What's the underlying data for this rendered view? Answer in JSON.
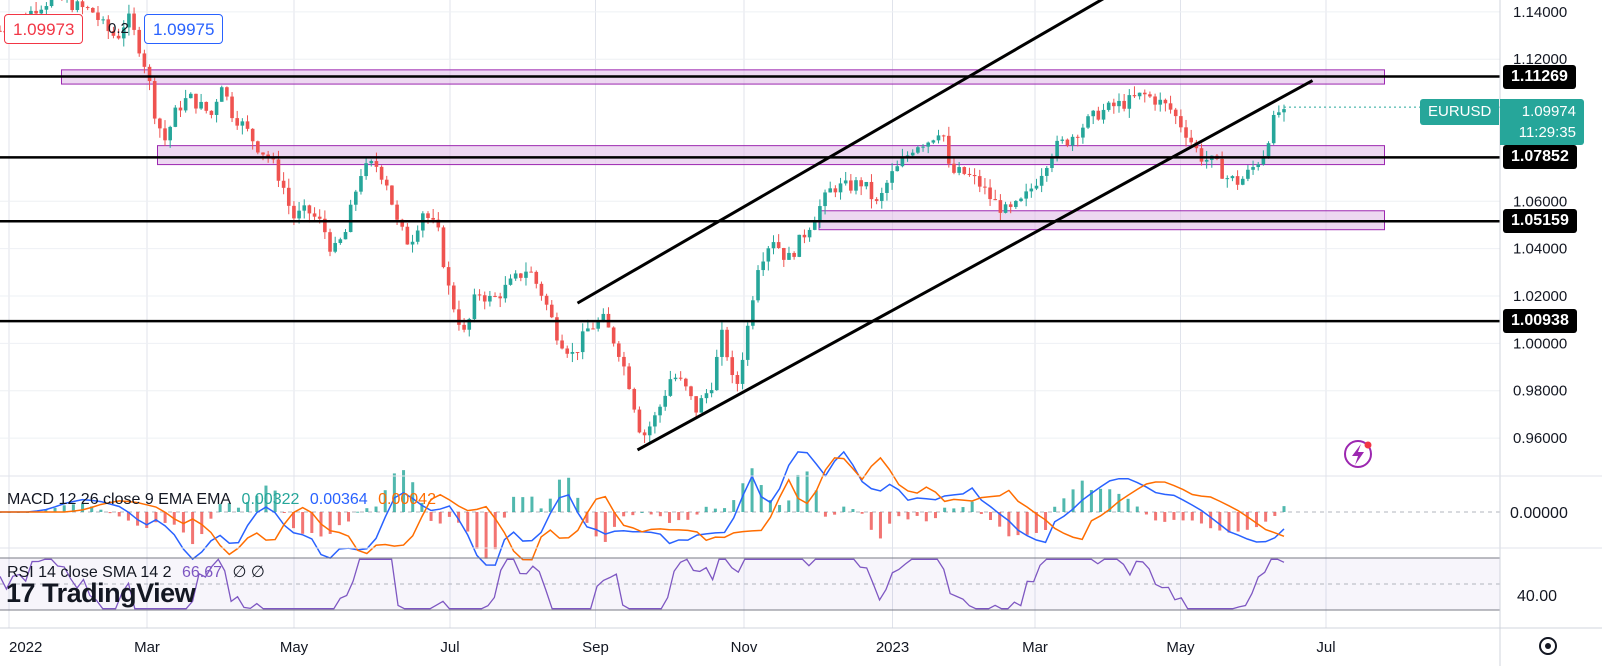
{
  "quote": {
    "bid": "1.09973",
    "spread": "0.2",
    "ask": "1.09975"
  },
  "symbol": "EURUSD",
  "last_price": "1.09974",
  "countdown": "11:29:35",
  "macd": {
    "label": "MACD 12 26 close 9 EMA EMA",
    "hist": "0.00322",
    "macd": "0.00364",
    "signal": "0.00042",
    "axis_label": "0.00000"
  },
  "rsi": {
    "label": "RSI 14 close SMA 14 2",
    "value": "66.67",
    "symbols": "∅ ∅",
    "axis_label": "40.00"
  },
  "brand": "TradingView",
  "colors": {
    "up": "#26a69a",
    "down": "#ef5350",
    "zone_fill": "#e1bee7",
    "zone_border": "#9c27b0",
    "macd_line": "#2962ff",
    "signal_line": "#ff6d00",
    "rsi_line": "#7e57c2"
  },
  "chart_data": {
    "type": "candlestick",
    "title": "EURUSD",
    "x_tick_labels": [
      "2022",
      "Mar",
      "May",
      "Jul",
      "Sep",
      "Nov",
      "2023",
      "Mar",
      "May",
      "Jul"
    ],
    "y_tick_labels": [
      "1.14000",
      "1.12000",
      "1.06000",
      "1.04000",
      "1.02000",
      "1.00000",
      "0.98000",
      "0.96000"
    ],
    "ylim": [
      0.944,
      1.145
    ],
    "horizontal_levels": [
      "1.11269",
      "1.07852",
      "1.05159",
      "1.00938"
    ],
    "zones": [
      [
        1.1095,
        1.1155
      ],
      [
        1.0755,
        1.0835
      ],
      [
        1.048,
        1.056
      ]
    ],
    "channel": {
      "upper": [
        [
          0.385,
          1.017
        ],
        [
          0.745,
          1.149
        ]
      ],
      "lower": [
        [
          0.425,
          0.955
        ],
        [
          0.875,
          1.111
        ]
      ]
    },
    "price_path": [
      [
        0,
        1.132
      ],
      [
        0.012,
        1.135
      ],
      [
        0.024,
        1.142
      ],
      [
        0.036,
        1.146
      ],
      [
        0.046,
        1.144
      ],
      [
        0.052,
        1.142
      ],
      [
        0.062,
        1.14
      ],
      [
        0.07,
        1.133
      ],
      [
        0.078,
        1.129
      ],
      [
        0.085,
        1.138
      ],
      [
        0.093,
        1.125
      ],
      [
        0.098,
        1.115
      ],
      [
        0.104,
        1.095
      ],
      [
        0.11,
        1.086
      ],
      [
        0.118,
        1.099
      ],
      [
        0.126,
        1.104
      ],
      [
        0.134,
        1.1
      ],
      [
        0.142,
        1.096
      ],
      [
        0.147,
        1.112
      ],
      [
        0.154,
        1.098
      ],
      [
        0.162,
        1.092
      ],
      [
        0.172,
        1.083
      ],
      [
        0.18,
        1.078
      ],
      [
        0.188,
        1.068
      ],
      [
        0.195,
        1.053
      ],
      [
        0.205,
        1.056
      ],
      [
        0.215,
        1.05
      ],
      [
        0.222,
        1.038
      ],
      [
        0.23,
        1.046
      ],
      [
        0.24,
        1.072
      ],
      [
        0.25,
        1.076
      ],
      [
        0.258,
        1.068
      ],
      [
        0.265,
        1.05
      ],
      [
        0.273,
        1.042
      ],
      [
        0.282,
        1.056
      ],
      [
        0.292,
        1.047
      ],
      [
        0.3,
        1.02
      ],
      [
        0.31,
        1.003
      ],
      [
        0.318,
        1.022
      ],
      [
        0.328,
        1.018
      ],
      [
        0.34,
        1.025
      ],
      [
        0.352,
        1.032
      ],
      [
        0.362,
        1.02
      ],
      [
        0.372,
        1.003
      ],
      [
        0.382,
        0.995
      ],
      [
        0.392,
        1.006
      ],
      [
        0.402,
        1.01
      ],
      [
        0.412,
        0.998
      ],
      [
        0.42,
        0.982
      ],
      [
        0.428,
        0.96
      ],
      [
        0.438,
        0.97
      ],
      [
        0.448,
        0.987
      ],
      [
        0.456,
        0.982
      ],
      [
        0.464,
        0.972
      ],
      [
        0.474,
        0.982
      ],
      [
        0.482,
        1.005
      ],
      [
        0.49,
        0.978
      ],
      [
        0.498,
        1.005
      ],
      [
        0.505,
        1.033
      ],
      [
        0.515,
        1.045
      ],
      [
        0.525,
        1.035
      ],
      [
        0.535,
        1.045
      ],
      [
        0.545,
        1.056
      ],
      [
        0.555,
        1.066
      ],
      [
        0.565,
        1.066
      ],
      [
        0.575,
        1.068
      ],
      [
        0.585,
        1.058
      ],
      [
        0.593,
        1.07
      ],
      [
        0.6,
        1.075
      ],
      [
        0.61,
        1.084
      ],
      [
        0.62,
        1.086
      ],
      [
        0.628,
        1.092
      ],
      [
        0.633,
        1.072
      ],
      [
        0.642,
        1.072
      ],
      [
        0.652,
        1.068
      ],
      [
        0.662,
        1.06
      ],
      [
        0.672,
        1.055
      ],
      [
        0.682,
        1.06
      ],
      [
        0.692,
        1.07
      ],
      [
        0.702,
        1.082
      ],
      [
        0.712,
        1.086
      ],
      [
        0.722,
        1.092
      ],
      [
        0.732,
        1.097
      ],
      [
        0.742,
        1.1
      ],
      [
        0.752,
        1.102
      ],
      [
        0.762,
        1.105
      ],
      [
        0.77,
        1.103
      ],
      [
        0.78,
        1.099
      ],
      [
        0.79,
        1.09
      ],
      [
        0.8,
        1.079
      ],
      [
        0.81,
        1.076
      ],
      [
        0.818,
        1.07
      ],
      [
        0.826,
        1.068
      ],
      [
        0.834,
        1.073
      ],
      [
        0.842,
        1.08
      ],
      [
        0.848,
        1.092
      ],
      [
        0.852,
        1.098
      ],
      [
        0.856,
        1.096
      ]
    ],
    "macd_hist_last": 0.00322,
    "rsi_last": 66.67
  }
}
